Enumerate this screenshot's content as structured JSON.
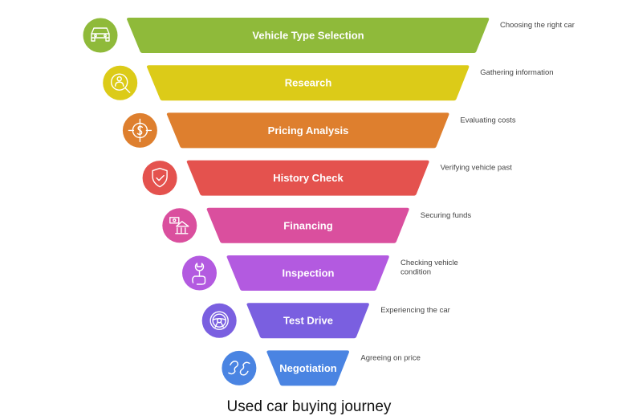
{
  "caption": "Used car buying journey",
  "stages": [
    {
      "label": "Vehicle Type Selection",
      "description": [
        "Choosing the right car"
      ],
      "color": "#8fba3a",
      "icon": "car-icon"
    },
    {
      "label": "Research",
      "description": [
        "Gathering information"
      ],
      "color": "#dccb18",
      "icon": "magnifier-person-icon"
    },
    {
      "label": "Pricing Analysis",
      "description": [
        "Evaluating costs"
      ],
      "color": "#de7f2e",
      "icon": "dollar-target-icon"
    },
    {
      "label": "History Check",
      "description": [
        "Verifying vehicle past"
      ],
      "color": "#e4524e",
      "icon": "shield-check-icon"
    },
    {
      "label": "Financing",
      "description": [
        "Securing funds"
      ],
      "color": "#da4f9e",
      "icon": "money-bank-icon"
    },
    {
      "label": "Inspection",
      "description": [
        "Checking vehicle",
        "condition"
      ],
      "color": "#b35ae0",
      "icon": "wrench-hand-icon"
    },
    {
      "label": "Test Drive",
      "description": [
        "Experiencing the car"
      ],
      "color": "#7a5fe0",
      "icon": "steering-wheel-icon"
    },
    {
      "label": "Negotiation",
      "description": [
        "Agreeing on price"
      ],
      "color": "#4a84e2",
      "icon": "handshake-icon"
    }
  ]
}
